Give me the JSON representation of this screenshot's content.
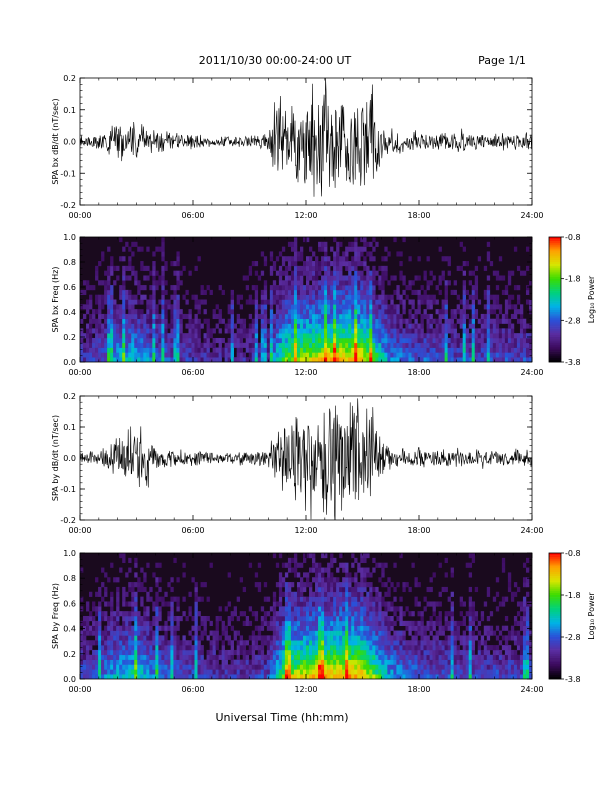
{
  "header": {
    "date_range": "2011/10/30   00:00-24:00 UT",
    "page": "Page 1/1"
  },
  "colors": {
    "trace": "#000000",
    "spectrogram_background": "#1a0a1e",
    "colormap": [
      "#000000",
      "#3b0a5c",
      "#5a2ca0",
      "#2a50d8",
      "#00b4e6",
      "#00d27a",
      "#3cdc00",
      "#d8e600",
      "#ffa000",
      "#ff0000"
    ]
  },
  "time_axis": {
    "ticks": [
      "00:00",
      "06:00",
      "12:00",
      "18:00",
      "24:00"
    ],
    "tick_hours": [
      0,
      6,
      12,
      18,
      24
    ],
    "label": "Universal Time (hh:mm)"
  },
  "colorbar": {
    "label": "Log₁₀ Power",
    "ticks": [
      "-0.8",
      "-1.8",
      "-2.8",
      "-3.8"
    ],
    "tick_values": [
      -0.8,
      -1.8,
      -2.8,
      -3.8
    ],
    "range": [
      -3.8,
      -0.8
    ]
  },
  "chart_data": [
    {
      "type": "line",
      "ylabel": "SPA bx dB/dt (nT/sec)",
      "xlim": [
        0,
        24
      ],
      "ylim": [
        -0.2,
        0.2
      ],
      "yticks": [
        "0.2",
        "0.1",
        "0.0",
        "-0.1",
        "-0.2"
      ],
      "ytick_values": [
        0.2,
        0.1,
        0.0,
        -0.1,
        -0.2
      ],
      "envelope": {
        "x_hours": [
          0,
          1,
          2,
          2.5,
          3,
          3.5,
          4,
          5,
          6,
          7,
          8,
          9,
          10,
          10.5,
          11,
          11.5,
          12,
          12.5,
          13,
          13.5,
          14,
          14.5,
          15,
          15.5,
          16,
          16.5,
          17,
          18,
          19,
          20,
          21,
          22,
          23,
          24
        ],
        "amplitude": [
          0.02,
          0.03,
          0.07,
          0.05,
          0.08,
          0.05,
          0.04,
          0.03,
          0.025,
          0.02,
          0.02,
          0.025,
          0.03,
          0.2,
          0.12,
          0.15,
          0.17,
          0.2,
          0.2,
          0.2,
          0.2,
          0.2,
          0.2,
          0.2,
          0.08,
          0.05,
          0.04,
          0.035,
          0.03,
          0.035,
          0.03,
          0.03,
          0.03,
          0.035
        ]
      }
    },
    {
      "type": "heatmap",
      "ylabel": "SPA bx Freq (Hz)",
      "xlim": [
        0,
        24
      ],
      "ylim": [
        0.0,
        1.0
      ],
      "yticks": [
        "1.0",
        "0.8",
        "0.6",
        "0.4",
        "0.2",
        "0.0"
      ],
      "ytick_values": [
        1.0,
        0.8,
        0.6,
        0.4,
        0.2,
        0.0
      ],
      "activity": {
        "x_hours": [
          0,
          1,
          2,
          3,
          4,
          5,
          6,
          8,
          10,
          10.5,
          11,
          12,
          13,
          14,
          15,
          16,
          16.5,
          18,
          20,
          22,
          24
        ],
        "level": [
          0.25,
          0.3,
          0.45,
          0.5,
          0.35,
          0.3,
          0.25,
          0.2,
          0.25,
          0.55,
          0.7,
          0.8,
          0.85,
          0.9,
          0.9,
          0.55,
          0.4,
          0.35,
          0.3,
          0.3,
          0.3
        ]
      }
    },
    {
      "type": "line",
      "ylabel": "SPA by dB/dt (nT/sec)",
      "xlim": [
        0,
        24
      ],
      "ylim": [
        -0.2,
        0.2
      ],
      "yticks": [
        "0.2",
        "0.1",
        "0.0",
        "-0.1",
        "-0.2"
      ],
      "ytick_values": [
        0.2,
        0.1,
        0.0,
        -0.1,
        -0.2
      ],
      "envelope": {
        "x_hours": [
          0,
          1,
          2,
          2.5,
          3,
          3.5,
          4,
          5,
          6,
          7,
          8,
          9,
          10,
          10.5,
          11,
          11.5,
          12,
          12.5,
          13,
          13.5,
          14,
          14.5,
          15,
          15.5,
          16,
          16.5,
          17,
          18,
          19,
          20,
          21,
          22,
          23,
          24
        ],
        "amplitude": [
          0.02,
          0.03,
          0.08,
          0.1,
          0.15,
          0.12,
          0.05,
          0.035,
          0.03,
          0.025,
          0.025,
          0.03,
          0.035,
          0.12,
          0.15,
          0.17,
          0.2,
          0.2,
          0.2,
          0.2,
          0.2,
          0.2,
          0.2,
          0.2,
          0.07,
          0.05,
          0.04,
          0.04,
          0.035,
          0.035,
          0.03,
          0.03,
          0.03,
          0.03
        ]
      }
    },
    {
      "type": "heatmap",
      "ylabel": "SPA by Freq (Hz)",
      "xlim": [
        0,
        24
      ],
      "ylim": [
        0.0,
        1.0
      ],
      "yticks": [
        "1.0",
        "0.8",
        "0.6",
        "0.4",
        "0.2",
        "0.0"
      ],
      "ytick_values": [
        1.0,
        0.8,
        0.6,
        0.4,
        0.2,
        0.0
      ],
      "activity": {
        "x_hours": [
          0,
          1,
          2,
          3,
          4,
          5,
          6,
          8,
          10,
          10.5,
          11,
          12,
          13,
          14,
          15,
          16,
          16.5,
          18,
          20,
          22,
          24
        ],
        "level": [
          0.3,
          0.35,
          0.5,
          0.55,
          0.4,
          0.35,
          0.3,
          0.25,
          0.3,
          0.55,
          0.75,
          0.85,
          0.9,
          0.95,
          0.9,
          0.6,
          0.45,
          0.35,
          0.3,
          0.3,
          0.3
        ]
      }
    }
  ]
}
